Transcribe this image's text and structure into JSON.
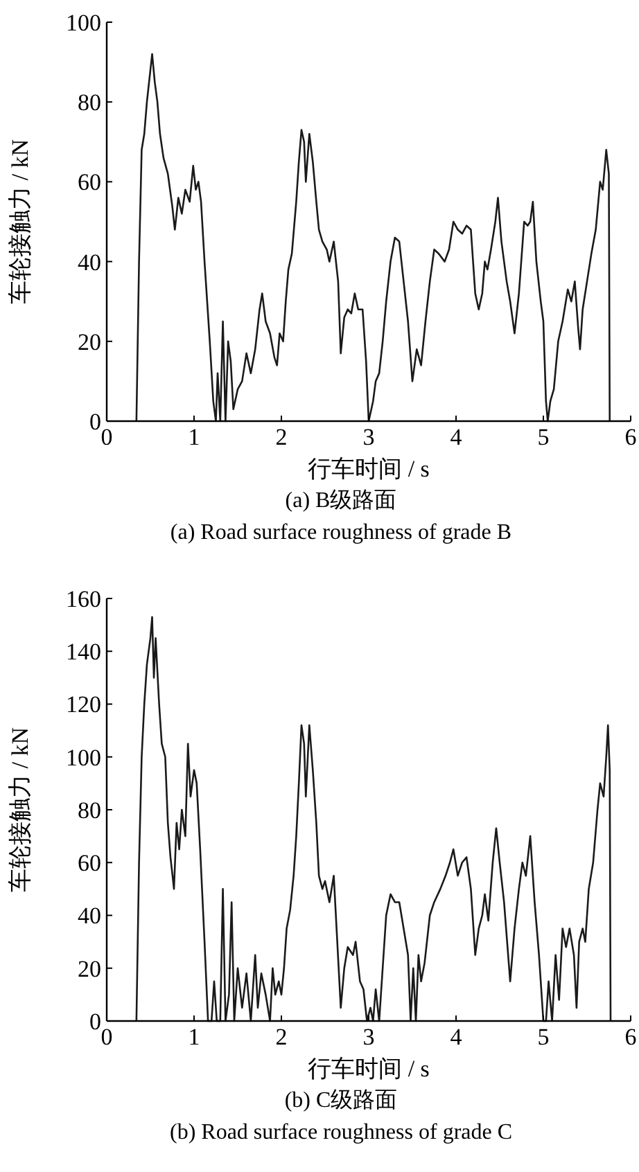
{
  "chart_data": [
    {
      "type": "line",
      "title": "(a)  B级路面",
      "subtitle": "(a)  Road surface roughness of grade B",
      "xlabel": "行车时间 / s",
      "ylabel": "车轮接触力 / kN",
      "xlim": [
        0,
        6
      ],
      "xticks": [
        0,
        1,
        2,
        3,
        4,
        5,
        6
      ],
      "ylim": [
        0,
        100
      ],
      "yticks": [
        0,
        20,
        40,
        60,
        80,
        100
      ],
      "color": "#1a1a1a",
      "grid": false,
      "x": [
        0.34,
        0.37,
        0.4,
        0.43,
        0.46,
        0.5,
        0.52,
        0.55,
        0.58,
        0.61,
        0.65,
        0.7,
        0.75,
        0.78,
        0.82,
        0.86,
        0.9,
        0.95,
        0.99,
        1.02,
        1.05,
        1.08,
        1.12,
        1.18,
        1.22,
        1.25,
        1.27,
        1.3,
        1.33,
        1.36,
        1.39,
        1.42,
        1.45,
        1.5,
        1.55,
        1.6,
        1.65,
        1.7,
        1.75,
        1.78,
        1.82,
        1.87,
        1.92,
        1.95,
        1.98,
        2.02,
        2.05,
        2.08,
        2.12,
        2.17,
        2.2,
        2.23,
        2.26,
        2.28,
        2.32,
        2.36,
        2.4,
        2.43,
        2.47,
        2.52,
        2.55,
        2.6,
        2.65,
        2.68,
        2.72,
        2.76,
        2.8,
        2.84,
        2.88,
        2.93,
        2.97,
        3.0,
        3.05,
        3.08,
        3.12,
        3.16,
        3.2,
        3.25,
        3.3,
        3.35,
        3.4,
        3.45,
        3.5,
        3.55,
        3.6,
        3.65,
        3.7,
        3.75,
        3.8,
        3.87,
        3.92,
        3.97,
        4.02,
        4.07,
        4.12,
        4.17,
        4.22,
        4.26,
        4.3,
        4.33,
        4.36,
        4.4,
        4.45,
        4.48,
        4.52,
        4.58,
        4.62,
        4.67,
        4.72,
        4.78,
        4.82,
        4.85,
        4.88,
        4.92,
        4.97,
        5.0,
        5.03,
        5.05,
        5.08,
        5.12,
        5.17,
        5.22,
        5.28,
        5.32,
        5.36,
        5.4,
        5.42,
        5.45,
        5.5,
        5.55,
        5.6,
        5.65,
        5.68,
        5.72,
        5.75,
        5.76
      ],
      "values": [
        0,
        40,
        68,
        72,
        80,
        88,
        92,
        85,
        80,
        72,
        66,
        62,
        54,
        48,
        56,
        52,
        58,
        55,
        64,
        58,
        60,
        55,
        40,
        20,
        5,
        0,
        12,
        0,
        25,
        0,
        20,
        15,
        3,
        8,
        10,
        17,
        12,
        18,
        28,
        32,
        25,
        22,
        16,
        14,
        22,
        20,
        30,
        38,
        42,
        55,
        65,
        73,
        70,
        60,
        72,
        65,
        55,
        48,
        45,
        43,
        40,
        45,
        35,
        17,
        26,
        28,
        27,
        32,
        28,
        28,
        15,
        0,
        5,
        10,
        12,
        20,
        30,
        40,
        46,
        45,
        35,
        25,
        10,
        18,
        14,
        25,
        35,
        43,
        42,
        40,
        43,
        50,
        48,
        47,
        49,
        48,
        32,
        28,
        32,
        40,
        38,
        43,
        50,
        56,
        45,
        35,
        30,
        22,
        32,
        50,
        49,
        50,
        55,
        40,
        30,
        25,
        5,
        0,
        5,
        8,
        20,
        25,
        33,
        30,
        35,
        23,
        18,
        28,
        35,
        42,
        48,
        60,
        58,
        68,
        62,
        0
      ]
    },
    {
      "type": "line",
      "title": "(b)  C级路面",
      "subtitle": "(b)  Road surface roughness of grade C",
      "xlabel": "行车时间 / s",
      "ylabel": "车轮接触力 / kN",
      "xlim": [
        0,
        6
      ],
      "xticks": [
        0,
        1,
        2,
        3,
        4,
        5,
        6
      ],
      "ylim": [
        0,
        160
      ],
      "yticks": [
        0,
        20,
        40,
        60,
        80,
        100,
        120,
        140,
        160
      ],
      "color": "#1a1a1a",
      "grid": false,
      "x": [
        0.34,
        0.37,
        0.4,
        0.43,
        0.46,
        0.5,
        0.52,
        0.54,
        0.56,
        0.6,
        0.63,
        0.67,
        0.7,
        0.73,
        0.77,
        0.8,
        0.83,
        0.86,
        0.9,
        0.93,
        0.96,
        1.0,
        1.03,
        1.07,
        1.12,
        1.16,
        1.2,
        1.23,
        1.26,
        1.3,
        1.33,
        1.36,
        1.4,
        1.43,
        1.46,
        1.5,
        1.55,
        1.6,
        1.65,
        1.7,
        1.73,
        1.77,
        1.82,
        1.87,
        1.9,
        1.93,
        1.97,
        2.0,
        2.03,
        2.06,
        2.1,
        2.14,
        2.17,
        2.2,
        2.23,
        2.26,
        2.28,
        2.32,
        2.36,
        2.4,
        2.43,
        2.47,
        2.5,
        2.55,
        2.6,
        2.64,
        2.68,
        2.72,
        2.76,
        2.82,
        2.85,
        2.9,
        2.94,
        2.98,
        3.02,
        3.05,
        3.08,
        3.12,
        3.16,
        3.2,
        3.25,
        3.3,
        3.35,
        3.4,
        3.45,
        3.48,
        3.51,
        3.54,
        3.57,
        3.6,
        3.64,
        3.7,
        3.75,
        3.82,
        3.88,
        3.93,
        3.97,
        4.02,
        4.07,
        4.12,
        4.17,
        4.22,
        4.26,
        4.3,
        4.33,
        4.37,
        4.42,
        4.46,
        4.5,
        4.55,
        4.62,
        4.67,
        4.72,
        4.76,
        4.8,
        4.85,
        4.9,
        4.95,
        5.0,
        5.03,
        5.06,
        5.1,
        5.14,
        5.18,
        5.22,
        5.26,
        5.3,
        5.35,
        5.38,
        5.41,
        5.45,
        5.48,
        5.52,
        5.57,
        5.62,
        5.65,
        5.69,
        5.72,
        5.74,
        5.76,
        5.77
      ],
      "values": [
        0,
        60,
        100,
        120,
        135,
        145,
        153,
        130,
        145,
        120,
        105,
        100,
        75,
        62,
        50,
        75,
        65,
        80,
        70,
        105,
        85,
        95,
        90,
        65,
        30,
        0,
        0,
        15,
        0,
        0,
        50,
        0,
        10,
        45,
        0,
        20,
        5,
        18,
        0,
        25,
        5,
        18,
        10,
        0,
        20,
        10,
        15,
        10,
        20,
        35,
        42,
        55,
        70,
        90,
        112,
        105,
        85,
        112,
        95,
        75,
        55,
        50,
        53,
        45,
        55,
        30,
        5,
        20,
        28,
        25,
        30,
        15,
        12,
        0,
        5,
        0,
        12,
        0,
        20,
        40,
        48,
        45,
        45,
        35,
        25,
        0,
        20,
        0,
        25,
        15,
        22,
        40,
        45,
        50,
        55,
        60,
        65,
        55,
        60,
        62,
        50,
        25,
        35,
        40,
        48,
        38,
        60,
        73,
        60,
        45,
        15,
        35,
        50,
        60,
        55,
        70,
        45,
        25,
        0,
        0,
        15,
        0,
        25,
        8,
        35,
        28,
        35,
        25,
        5,
        30,
        35,
        30,
        50,
        60,
        80,
        90,
        85,
        100,
        112,
        95,
        0
      ]
    }
  ]
}
